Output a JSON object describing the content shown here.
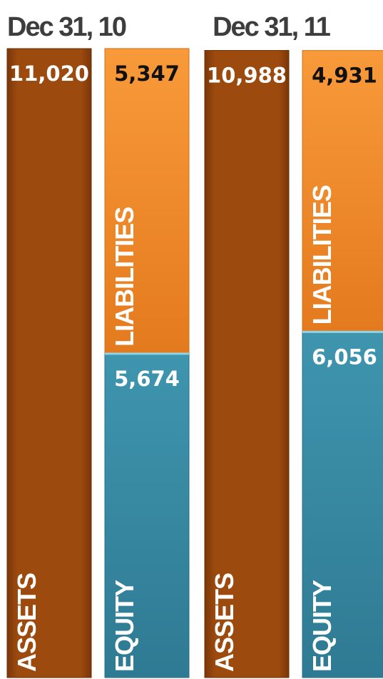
{
  "chart_data": {
    "type": "bar",
    "stacked": true,
    "periods": [
      {
        "label": "Dec 31, 10",
        "assets": {
          "label": "ASSETS",
          "value": 11020,
          "display": "11,020"
        },
        "liabilities": {
          "label": "LIABILITIES",
          "value": 5347,
          "display": "5,347"
        },
        "equity": {
          "label": "EQUITY",
          "value": 5674,
          "display": "5,674"
        }
      },
      {
        "label": "Dec 31, 11",
        "assets": {
          "label": "ASSETS",
          "value": 10988,
          "display": "10,988"
        },
        "liabilities": {
          "label": "LIABILITIES",
          "value": 4931,
          "display": "4,931"
        },
        "equity": {
          "label": "EQUITY",
          "value": 6056,
          "display": "6,056"
        }
      }
    ],
    "colors": {
      "assets": "#9c4a0e",
      "liabilities": "#f08a2a",
      "equity": "#3a8ca6"
    }
  }
}
